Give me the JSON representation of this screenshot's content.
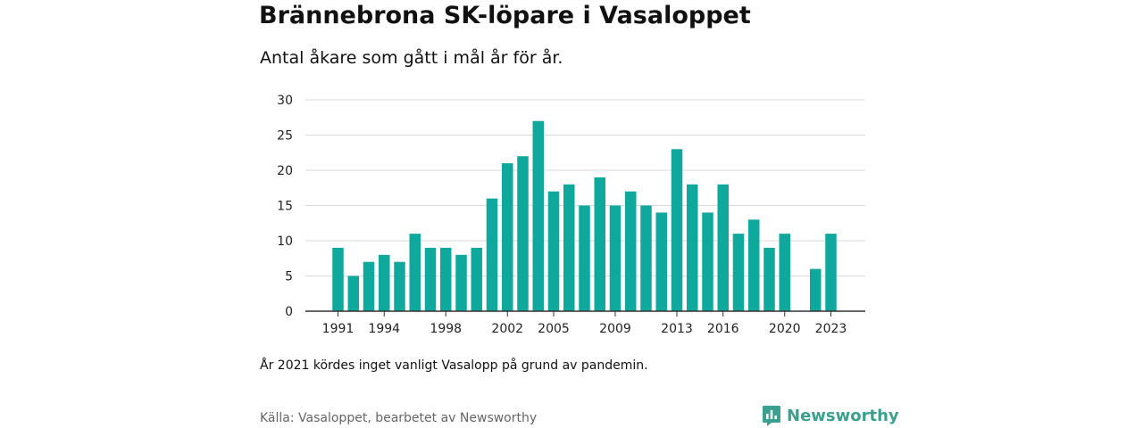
{
  "header": {
    "title": "Brännebrona SK-löpare i Vasaloppet",
    "subtitle": "Antal åkare som gått i mål år för år."
  },
  "footer": {
    "note": "År 2021 kördes inget vanligt Vasalopp på grund av pandemin.",
    "source": "Källa: Vasaloppet, bearbetet av Newsworthy",
    "brand": "Newsworthy"
  },
  "colors": {
    "bar": "#0ea89c",
    "grid": "#d9d9d9",
    "axis": "#333333",
    "brand": "#3aa08f"
  },
  "chart_data": {
    "type": "bar",
    "categories": [
      "1991",
      "1992",
      "1993",
      "1994",
      "1995",
      "1996",
      "1997",
      "1998",
      "1999",
      "2000",
      "2001",
      "2002",
      "2003",
      "2004",
      "2005",
      "2006",
      "2007",
      "2008",
      "2009",
      "2010",
      "2011",
      "2012",
      "2013",
      "2014",
      "2015",
      "2016",
      "2017",
      "2018",
      "2019",
      "2020",
      "2021",
      "2022",
      "2023"
    ],
    "values": [
      9,
      5,
      7,
      8,
      7,
      11,
      9,
      9,
      8,
      9,
      16,
      21,
      22,
      27,
      17,
      18,
      15,
      19,
      15,
      17,
      15,
      14,
      23,
      18,
      14,
      18,
      11,
      13,
      9,
      11,
      null,
      6,
      11
    ],
    "tick_labels": [
      "1991",
      "1994",
      "1998",
      "2002",
      "2005",
      "2009",
      "2013",
      "2016",
      "2020",
      "2023"
    ],
    "y_ticks": [
      "0",
      "5",
      "10",
      "15",
      "20",
      "25",
      "30"
    ],
    "ylim": [
      0,
      30
    ],
    "grid": true,
    "legend": "none"
  }
}
